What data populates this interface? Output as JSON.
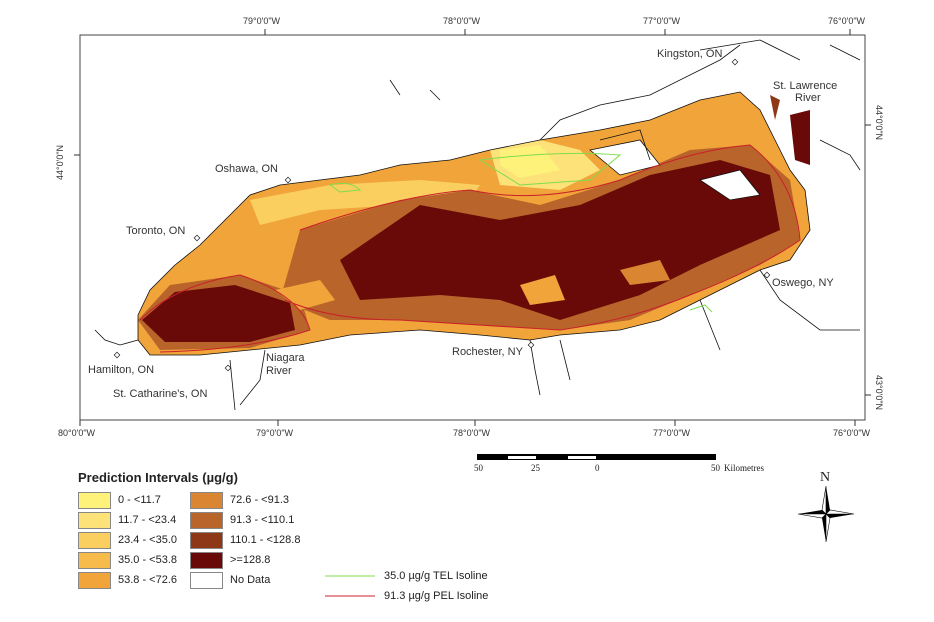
{
  "map": {
    "places": [
      {
        "name": "Kingston, ON"
      },
      {
        "name": "St. Lawrence"
      },
      {
        "name": "River"
      },
      {
        "name": "Oshawa, ON"
      },
      {
        "name": "Toronto, ON"
      },
      {
        "name": "Oswego, NY"
      },
      {
        "name": "Rochester, NY"
      },
      {
        "name": "Hamilton, ON"
      },
      {
        "name": "Niagara"
      },
      {
        "name": "River"
      },
      {
        "name": "St. Catharine's, ON"
      }
    ],
    "top_ticks": [
      "79°0'0\"W",
      "78°0'0\"W",
      "77°0'0\"W",
      "76°0'0\"W"
    ],
    "bottom_ticks": [
      "80°0'0\"W",
      "79°0'0\"W",
      "78°0'0\"W",
      "77°0'0\"W",
      "76°0'0\"W"
    ],
    "left_ticks": [
      "44°0'0\"N"
    ],
    "right_ticks": [
      "44°0'0\"N",
      "43°0'0\"N"
    ]
  },
  "legend": {
    "title": "Prediction Intervals (µg/g)",
    "classes": [
      {
        "label": "0 - <11.7",
        "color": "#fff27a"
      },
      {
        "label": "11.7 - <23.4",
        "color": "#fde27a"
      },
      {
        "label": "23.4 - <35.0",
        "color": "#fbcf5f"
      },
      {
        "label": "35.0 - <53.8",
        "color": "#f7bb4c"
      },
      {
        "label": "53.8 - <72.6",
        "color": "#f0a43a"
      },
      {
        "label": "72.6 - <91.3",
        "color": "#d98532"
      },
      {
        "label": "91.3 - <110.1",
        "color": "#b9642a"
      },
      {
        "label": "110.1 - <128.8",
        "color": "#8e3818"
      },
      {
        "label": ">=128.8",
        "color": "#6a0a08"
      },
      {
        "label": "No Data",
        "color": "#ffffff"
      }
    ],
    "lines": [
      {
        "label": "35.0 µg/g TEL Isoline",
        "color": "#7fdc4f"
      },
      {
        "label": "91.3 µg/g PEL Isoline",
        "color": "#c8202a"
      }
    ]
  },
  "scale": {
    "labels": [
      "50",
      "25",
      "0",
      "50"
    ],
    "unit": "Kilometres"
  },
  "north_arrow": {
    "label": "N"
  }
}
